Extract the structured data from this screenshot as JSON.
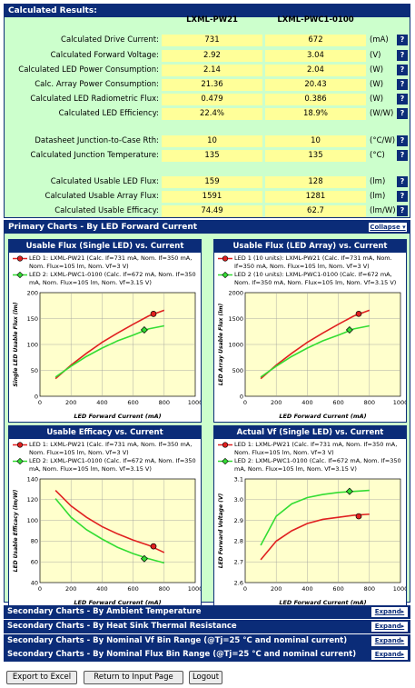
{
  "results": {
    "title": "Calculated Results:",
    "col1": "LXML-PW21",
    "col2": "LXML-PWC1-0100",
    "help": "?",
    "rows": [
      {
        "label": "Calculated Drive Current:",
        "v1": "731",
        "v2": "672",
        "unit": "(mA)"
      },
      {
        "label": "Calculated Forward Voltage:",
        "v1": "2.92",
        "v2": "3.04",
        "unit": "(V)"
      },
      {
        "label": "Calculated LED Power Consumption:",
        "v1": "2.14",
        "v2": "2.04",
        "unit": "(W)"
      },
      {
        "label": "Calc. Array Power Consumption:",
        "v1": "21.36",
        "v2": "20.43",
        "unit": "(W)"
      },
      {
        "label": "Calculated LED Radiometric Flux:",
        "v1": "0.479",
        "v2": "0.386",
        "unit": "(W)"
      },
      {
        "label": "Calculated LED Efficiency:",
        "v1": "22.4%",
        "v2": "18.9%",
        "unit": "(W/W)"
      },
      {
        "label": "Datasheet Junction-to-Case Rth:",
        "v1": "10",
        "v2": "10",
        "unit": "(°C/W)"
      },
      {
        "label": "Calculated Junction Temperature:",
        "v1": "135",
        "v2": "135",
        "unit": "(°C)"
      },
      {
        "label": "Calculated Usable LED Flux:",
        "v1": "159",
        "v2": "128",
        "unit": "(lm)"
      },
      {
        "label": "Calculated Usable Array Flux:",
        "v1": "1591",
        "v2": "1281",
        "unit": "(lm)"
      },
      {
        "label": "Calculated Usable Efficacy:",
        "v1": "74.49",
        "v2": "62.7",
        "unit": "(lm/W)"
      }
    ]
  },
  "primary": {
    "title": "Primary Charts - By LED Forward Current",
    "collapse": "Collapse ▾"
  },
  "colors": {
    "led1": "#e02020",
    "led2": "#33dd33",
    "navy": "#0b2c78",
    "panel": "#ccffcc",
    "plot": "#ffffcc"
  },
  "chart_data": [
    {
      "type": "line",
      "title": "Usable Flux (Single LED) vs. Current",
      "legend": [
        "LED 1: LXML-PW21 (Calc. If=731 mA, Nom. If=350 mA, Nom. Flux=105 lm, Nom. Vf=3 V)",
        "LED 2: LXML-PWC1-0100 (Calc. If=672 mA, Nom. If=350 mA, Nom. Flux=105 lm, Nom. Vf=3.15 V)"
      ],
      "xlabel": "LED Forward Current (mA)",
      "ylabel": "Single LED Usable Flux (lm)",
      "xlim": [
        0,
        1000
      ],
      "ylim": [
        0,
        200
      ],
      "xticks": [
        "0",
        "200",
        "400",
        "600",
        "800",
        "1000"
      ],
      "yticks": [
        "0",
        "50",
        "100",
        "150",
        "200"
      ],
      "series": [
        {
          "name": "LED 1",
          "x": [
            100,
            200,
            300,
            400,
            500,
            600,
            700,
            800
          ],
          "y": [
            34,
            60,
            83,
            104,
            122,
            139,
            155,
            166
          ],
          "marker": {
            "x": 731,
            "y": 159
          }
        },
        {
          "name": "LED 2",
          "x": [
            100,
            200,
            300,
            400,
            500,
            600,
            700,
            800
          ],
          "y": [
            37,
            58,
            77,
            93,
            107,
            118,
            130,
            136
          ],
          "marker": {
            "x": 672,
            "y": 128
          }
        }
      ]
    },
    {
      "type": "line",
      "title": "Usable Flux (LED Array) vs. Current",
      "legend": [
        "LED 1 (10 units): LXML-PW21 (Calc. If=731 mA, Nom. If=350 mA, Nom. Flux=105 lm, Nom. Vf=3 V)",
        "LED 2 (10 units): LXML-PWC1-0100 (Calc. If=672 mA, Nom. If=350 mA, Nom. Flux=105 lm, Nom. Vf=3.15 V)"
      ],
      "xlabel": "LED Forward Current (mA)",
      "ylabel": "LED Array Usable Flux (lm)",
      "xlim": [
        0,
        1000
      ],
      "ylim": [
        0,
        2000
      ],
      "xticks": [
        "0",
        "200",
        "400",
        "600",
        "800",
        "1000"
      ],
      "yticks": [
        "0",
        "500",
        "1000",
        "1500",
        "2000"
      ],
      "series": [
        {
          "name": "LED 1",
          "x": [
            100,
            200,
            300,
            400,
            500,
            600,
            700,
            800
          ],
          "y": [
            340,
            600,
            830,
            1040,
            1220,
            1390,
            1550,
            1660
          ],
          "marker": {
            "x": 731,
            "y": 1591
          }
        },
        {
          "name": "LED 2",
          "x": [
            100,
            200,
            300,
            400,
            500,
            600,
            700,
            800
          ],
          "y": [
            370,
            580,
            770,
            930,
            1070,
            1180,
            1300,
            1360
          ],
          "marker": {
            "x": 672,
            "y": 1281
          }
        }
      ]
    },
    {
      "type": "line",
      "title": "Usable Efficacy vs. Current",
      "legend": [
        "LED 1: LXML-PW21 (Calc. If=731 mA, Nom. If=350 mA, Nom. Flux=105 lm, Nom. Vf=3 V)",
        "LED 2: LXML-PWC1-0100 (Calc. If=672 mA, Nom. If=350 mA, Nom. Flux=105 lm, Nom. Vf=3.15 V)"
      ],
      "xlabel": "LED Forward Current (mA)",
      "ylabel": "LED Usable Efficacy (lm/W)",
      "xlim": [
        0,
        1000
      ],
      "ylim": [
        40,
        140
      ],
      "xticks": [
        "0",
        "200",
        "400",
        "600",
        "800",
        "1000"
      ],
      "yticks": [
        "40",
        "60",
        "80",
        "100",
        "120",
        "140"
      ],
      "series": [
        {
          "name": "LED 1",
          "x": [
            100,
            200,
            300,
            400,
            500,
            600,
            700,
            800
          ],
          "y": [
            129,
            114,
            103,
            94,
            87,
            81,
            76,
            69
          ],
          "marker": {
            "x": 731,
            "y": 75
          }
        },
        {
          "name": "LED 2",
          "x": [
            100,
            200,
            300,
            400,
            500,
            600,
            700,
            800
          ],
          "y": [
            121,
            103,
            91,
            82,
            74,
            68,
            63,
            59
          ],
          "marker": {
            "x": 672,
            "y": 63
          }
        }
      ]
    },
    {
      "type": "line",
      "title": "Actual Vf (Single LED) vs. Current",
      "legend": [
        "LED 1: LXML-PW21 (Calc. If=731 mA, Nom. If=350 mA, Nom. Flux=105 lm, Nom. Vf=3 V)",
        "LED 2: LXML-PWC1-0100 (Calc. If=672 mA, Nom. If=350 mA, Nom. Flux=105 lm, Nom. Vf=3.15 V)"
      ],
      "xlabel": "LED Forward Current (mA)",
      "ylabel": "LED Forward Voltage (V)",
      "xlim": [
        0,
        1000
      ],
      "ylim": [
        2.6,
        3.1
      ],
      "xticks": [
        "0",
        "200",
        "400",
        "600",
        "800",
        "1000"
      ],
      "yticks": [
        "2.6",
        "2.7",
        "2.8",
        "2.9",
        "3.0",
        "3.1"
      ],
      "series": [
        {
          "name": "LED 1",
          "x": [
            100,
            200,
            300,
            400,
            500,
            600,
            700,
            800
          ],
          "y": [
            2.71,
            2.8,
            2.85,
            2.885,
            2.905,
            2.915,
            2.925,
            2.93
          ],
          "marker": {
            "x": 731,
            "y": 2.92
          }
        },
        {
          "name": "LED 2",
          "x": [
            100,
            200,
            300,
            400,
            500,
            600,
            700,
            800
          ],
          "y": [
            2.78,
            2.92,
            2.98,
            3.01,
            3.025,
            3.035,
            3.04,
            3.045
          ],
          "marker": {
            "x": 672,
            "y": 3.04
          }
        }
      ]
    }
  ],
  "secondary": [
    {
      "label": "Secondary Charts - By Ambient Temperature",
      "action": "Expand▸"
    },
    {
      "label": "Secondary Charts - By Heat Sink Thermal Resistance",
      "action": "Expand▸"
    },
    {
      "label": "Secondary Charts - By Nominal Vf Bin Range (@Tj=25 °C and nominal current)",
      "action": "Expand▸"
    },
    {
      "label": "Secondary Charts - By Nominal Flux Bin Range (@Tj=25 °C and nominal current)",
      "action": "Expand▸"
    }
  ],
  "buttons": {
    "export": "Export to Excel",
    "back": "Return to Input Page",
    "logout": "Logout"
  }
}
